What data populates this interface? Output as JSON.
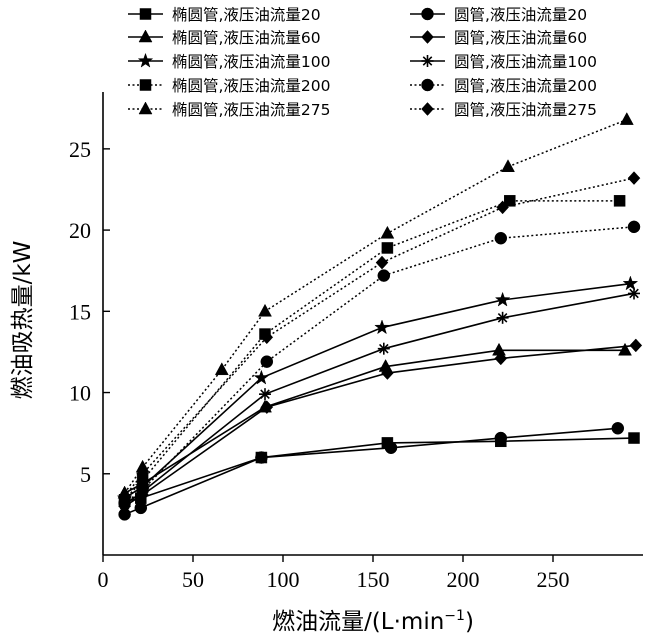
{
  "chart_data": {
    "type": "line",
    "title": "",
    "xlabel": "燃油流量/(L·min",
    "xlabel_sup": "−1",
    "xlabel_close": ")",
    "ylabel": "燃油吸热量/kW",
    "xlim": [
      0,
      300
    ],
    "ylim": [
      0,
      28.5
    ],
    "xticks": [
      0,
      50,
      100,
      150,
      200,
      250
    ],
    "yticks": [
      5,
      10,
      15,
      20,
      25
    ],
    "grid": false,
    "legend_position": "top",
    "series": [
      {
        "name": "椭圆管,液压油流量20",
        "marker": "square",
        "style": "solid",
        "x": [
          12,
          21,
          88,
          158,
          221,
          295
        ],
        "y": [
          3.3,
          3.5,
          6.0,
          6.9,
          7.0,
          7.2
        ]
      },
      {
        "name": "圆管,液压油流量20",
        "marker": "circle",
        "style": "solid",
        "x": [
          12,
          21,
          88,
          160,
          221,
          286
        ],
        "y": [
          2.5,
          2.9,
          6.0,
          6.6,
          7.2,
          7.8
        ]
      },
      {
        "name": "椭圆管,液压油流量60",
        "marker": "triangle",
        "style": "solid",
        "x": [
          12,
          22,
          90,
          157,
          220,
          290
        ],
        "y": [
          3.8,
          4.4,
          9.1,
          11.6,
          12.6,
          12.6
        ]
      },
      {
        "name": "圆管,液压油流量60",
        "marker": "diamond",
        "style": "solid",
        "x": [
          12,
          22,
          91,
          158,
          221,
          296
        ],
        "y": [
          3.0,
          3.7,
          9.1,
          11.2,
          12.1,
          12.9
        ]
      },
      {
        "name": "椭圆管,液压油流量100",
        "marker": "star",
        "style": "solid",
        "x": [
          12,
          22,
          88,
          155,
          222,
          293
        ],
        "y": [
          3.5,
          4.2,
          10.9,
          14.0,
          15.7,
          16.7
        ]
      },
      {
        "name": "圆管,液压油流量100",
        "marker": "asterisk",
        "style": "solid",
        "x": [
          12,
          22,
          90,
          156,
          222,
          295
        ],
        "y": [
          3.1,
          3.9,
          9.9,
          12.7,
          14.6,
          16.1
        ]
      },
      {
        "name": "椭圆管,液压油流量200",
        "marker": "square",
        "style": "dotted",
        "x": [
          12,
          22,
          90,
          158,
          226,
          287
        ],
        "y": [
          3.4,
          4.6,
          13.6,
          18.9,
          21.8,
          21.8
        ]
      },
      {
        "name": "圆管,液压油流量200",
        "marker": "circle",
        "style": "dotted",
        "x": [
          12,
          22,
          91,
          156,
          221,
          295
        ],
        "y": [
          3.2,
          4.0,
          11.9,
          17.2,
          19.5,
          20.2
        ]
      },
      {
        "name": "椭圆管,液压油流量275",
        "marker": "triangle",
        "style": "dotted",
        "x": [
          12,
          22,
          66,
          90,
          158,
          225,
          291
        ],
        "y": [
          3.8,
          5.4,
          11.4,
          15.0,
          19.8,
          23.9,
          26.8
        ]
      },
      {
        "name": "圆管,液压油流量275",
        "marker": "diamond",
        "style": "dotted",
        "x": [
          12,
          22,
          91,
          155,
          222,
          295
        ],
        "y": [
          3.6,
          5.0,
          13.4,
          18.0,
          21.4,
          23.2
        ]
      }
    ]
  }
}
